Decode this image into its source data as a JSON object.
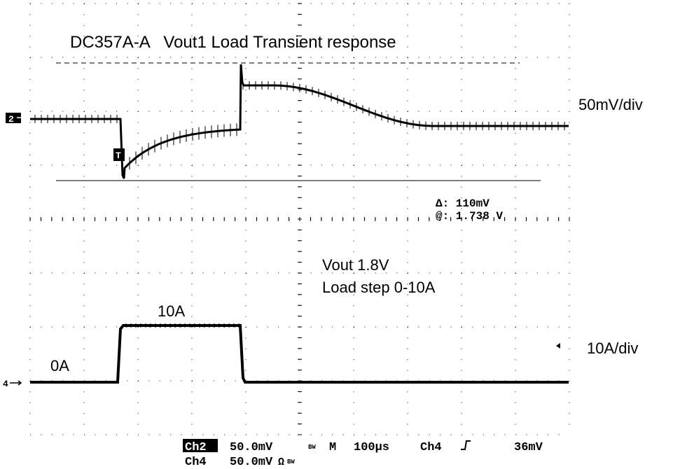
{
  "title": "DC357A-A   Vout1 Load Transient response",
  "scales": {
    "ch2": "50mV/div",
    "ch4": "10A/div"
  },
  "cursor": {
    "delta": "Δ: 110mV",
    "at": "@: 1.738 V"
  },
  "notes": [
    "Vout 1.8V",
    "Load step 0-10A"
  ],
  "levels": {
    "high": "10A",
    "low": "0A"
  },
  "markers": {
    "ch2": "2",
    "ch4": "4",
    "trigger": "T"
  },
  "status": {
    "row1": [
      "Ch2",
      "50.0mV",
      "BW",
      "M",
      "100µs",
      "Ch4",
      "36mV"
    ],
    "row2": [
      "Ch4",
      "50.0mV",
      "Ω",
      "BW"
    ]
  }
}
